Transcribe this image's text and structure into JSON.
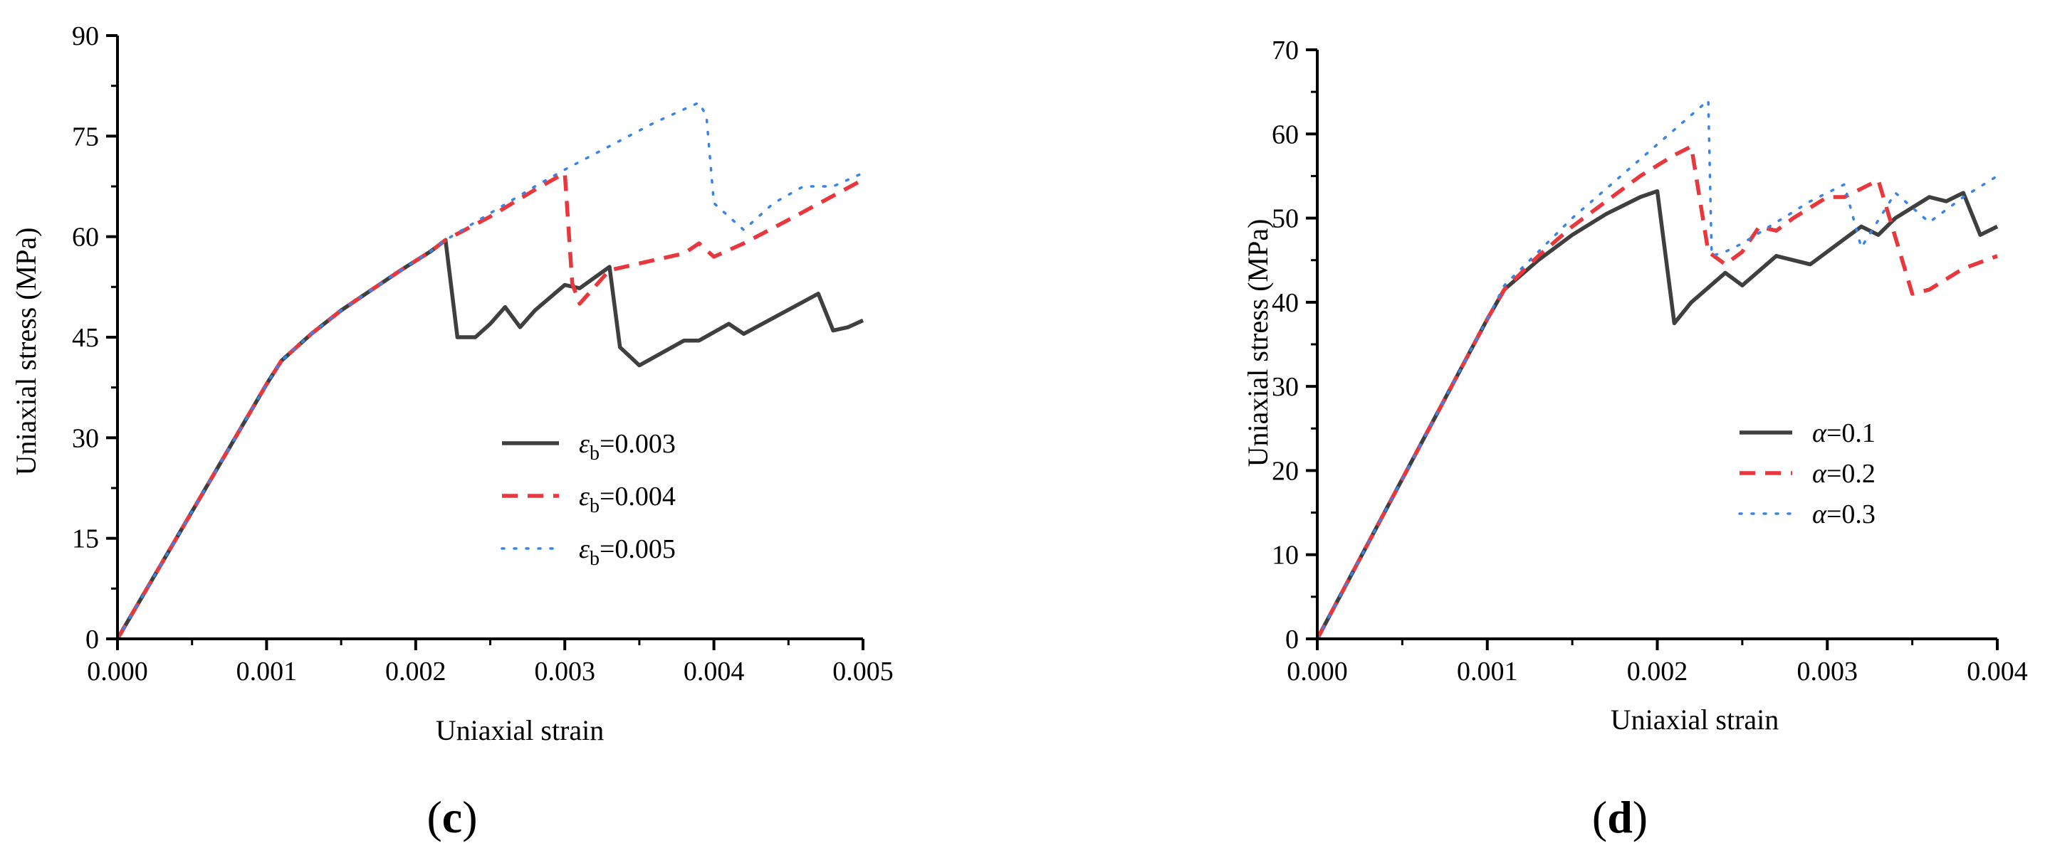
{
  "chart_data": [
    {
      "type": "line",
      "panel_label": "c",
      "xlabel": "Uniaxial strain",
      "ylabel": "Uniaxial stress (MPa)",
      "xlim": [
        0,
        0.005
      ],
      "ylim": [
        0,
        90
      ],
      "xticks": [
        "0.000",
        "0.001",
        "0.002",
        "0.003",
        "0.004",
        "0.005"
      ],
      "yticks": [
        "0",
        "15",
        "30",
        "45",
        "60",
        "75",
        "90"
      ],
      "legend_position": "center",
      "series": [
        {
          "name": "ε_b=0.003",
          "name_parts": [
            "ε",
            "b",
            "=0.003"
          ],
          "color": "#3f3f3f",
          "style": "solid",
          "x": [
            0,
            0.001,
            0.0011,
            0.0013,
            0.0015,
            0.0017,
            0.0019,
            0.0021,
            0.0022,
            0.00228,
            0.0024,
            0.0025,
            0.0026,
            0.0027,
            0.0028,
            0.003,
            0.0031,
            0.0033,
            0.00337,
            0.0035,
            0.0038,
            0.0039,
            0.0041,
            0.0042,
            0.0047,
            0.0048,
            0.0049,
            0.005
          ],
          "y": [
            0,
            38,
            41.5,
            45.5,
            49,
            52,
            55,
            57.8,
            59.5,
            45,
            45,
            47,
            49.5,
            46.5,
            49,
            52.8,
            52.3,
            55.5,
            43.5,
            40.8,
            44.5,
            44.5,
            47,
            45.5,
            51.5,
            46,
            46.5,
            47.5
          ]
        },
        {
          "name": "ε_b=0.004",
          "name_parts": [
            "ε",
            "b",
            "=0.004"
          ],
          "color": "#e8373d",
          "style": "dashed",
          "x": [
            0,
            0.001,
            0.0011,
            0.0013,
            0.0015,
            0.0017,
            0.0019,
            0.0021,
            0.0022,
            0.0025,
            0.0028,
            0.003,
            0.00305,
            0.0031,
            0.0033,
            0.0036,
            0.0038,
            0.0039,
            0.004,
            0.0042,
            0.0045,
            0.005
          ],
          "y": [
            0,
            38,
            41.5,
            45.5,
            49,
            52,
            55,
            57.8,
            59.5,
            63,
            67,
            69.5,
            53,
            50,
            55,
            56.5,
            57.5,
            59,
            57,
            59,
            62.5,
            68.5
          ]
        },
        {
          "name": "ε_b=0.005",
          "name_parts": [
            "ε",
            "b",
            "=0.005"
          ],
          "color": "#3a84e8",
          "style": "dotted",
          "x": [
            0,
            0.001,
            0.0011,
            0.0013,
            0.0015,
            0.0017,
            0.0019,
            0.0021,
            0.0022,
            0.0025,
            0.0028,
            0.003,
            0.0033,
            0.0036,
            0.0038,
            0.0039,
            0.00395,
            0.004,
            0.0042,
            0.0044,
            0.0046,
            0.0048,
            0.005
          ],
          "y": [
            0,
            38,
            41.5,
            45.5,
            49,
            52,
            55,
            57.8,
            59.5,
            63.5,
            67.5,
            70,
            73.5,
            77,
            79,
            80,
            78,
            65,
            61,
            65,
            67.5,
            67.5,
            69.5
          ]
        }
      ]
    },
    {
      "type": "line",
      "panel_label": "d",
      "xlabel": "Uniaxial strain",
      "ylabel": "Uniaxial stress (MPa)",
      "xlim": [
        0,
        0.004
      ],
      "ylim": [
        0,
        70
      ],
      "xticks": [
        "0.000",
        "0.001",
        "0.002",
        "0.003",
        "0.004"
      ],
      "yticks": [
        "0",
        "10",
        "20",
        "30",
        "40",
        "50",
        "60",
        "70"
      ],
      "legend_position": "center-right",
      "series": [
        {
          "name": "α=0.1",
          "name_parts": [
            "α",
            "",
            "=0.1"
          ],
          "color": "#3f3f3f",
          "style": "solid",
          "x": [
            0,
            0.001,
            0.0011,
            0.0013,
            0.0015,
            0.0017,
            0.0019,
            0.002,
            0.0021,
            0.0022,
            0.0024,
            0.0025,
            0.0027,
            0.0029,
            0.0031,
            0.0032,
            0.0033,
            0.0034,
            0.0036,
            0.0037,
            0.0038,
            0.0039,
            0.004
          ],
          "y": [
            0,
            38,
            41.5,
            45,
            48,
            50.5,
            52.5,
            53.2,
            37.5,
            40,
            43.5,
            42,
            45.5,
            44.5,
            47.5,
            49,
            48,
            50,
            52.5,
            52,
            53,
            48,
            49
          ]
        },
        {
          "name": "α=0.2",
          "name_parts": [
            "α",
            "",
            "=0.2"
          ],
          "color": "#e8373d",
          "style": "dashed",
          "x": [
            0,
            0.001,
            0.0011,
            0.0013,
            0.0015,
            0.0017,
            0.0019,
            0.0021,
            0.0022,
            0.0023,
            0.0024,
            0.0025,
            0.0026,
            0.0027,
            0.0028,
            0.003,
            0.0031,
            0.0032,
            0.0033,
            0.0035,
            0.0036,
            0.0038,
            0.004
          ],
          "y": [
            0,
            38,
            41.5,
            45.5,
            49,
            52,
            55,
            57.5,
            58.5,
            46,
            44.5,
            46,
            49,
            48.5,
            50,
            52.5,
            52.5,
            53.5,
            54.5,
            41,
            41.5,
            44,
            45.5
          ]
        },
        {
          "name": "α=0.3",
          "name_parts": [
            "α",
            "",
            "=0.3"
          ],
          "color": "#3a84e8",
          "style": "dotted",
          "x": [
            0,
            0.001,
            0.0011,
            0.0013,
            0.0015,
            0.0017,
            0.0019,
            0.0021,
            0.0023,
            0.00232,
            0.0024,
            0.0025,
            0.0027,
            0.0029,
            0.0031,
            0.0032,
            0.0034,
            0.0036,
            0.0038,
            0.004
          ],
          "y": [
            0,
            38,
            42,
            46,
            50,
            53.5,
            57,
            60.5,
            64,
            45.5,
            46,
            47,
            49.5,
            52,
            54,
            46.5,
            53,
            49.5,
            52.5,
            55
          ]
        }
      ]
    }
  ]
}
